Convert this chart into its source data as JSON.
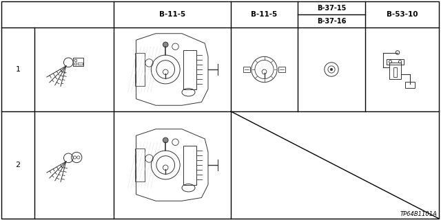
{
  "diagram_code": "TP64B1101A",
  "background_color": "#ffffff",
  "line_color": "#000000",
  "text_color": "#000000",
  "header_labels": [
    "B-11-5",
    "B-11-5",
    "B-37-15",
    "B-37-16",
    "B-53-10"
  ],
  "row_labels": [
    "1",
    "2"
  ],
  "font_size_header": 7.5,
  "font_size_label": 8,
  "font_size_code": 6
}
